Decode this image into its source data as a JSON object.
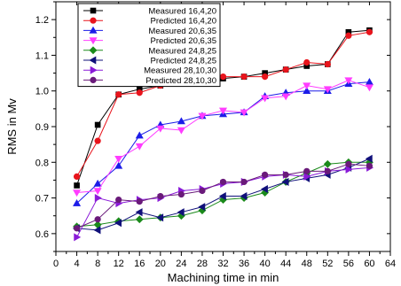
{
  "chart_data": {
    "type": "line",
    "xlabel": "Machining time in min",
    "ylabel": "RMS in Mv",
    "xlim": [
      0,
      64
    ],
    "ylim": [
      0.55,
      1.25
    ],
    "xticks": [
      0,
      4,
      8,
      12,
      16,
      20,
      24,
      28,
      32,
      36,
      40,
      44,
      48,
      52,
      56,
      60,
      64
    ],
    "yticks": [
      0.6,
      0.7,
      0.8,
      0.9,
      1.0,
      1.1,
      1.2
    ],
    "ytick_labels": [
      "0.6",
      "0.7",
      "0.8",
      "0.9",
      "1.0",
      "1.1",
      "1.2"
    ],
    "x": [
      4,
      8,
      12,
      16,
      20,
      24,
      28,
      32,
      36,
      40,
      44,
      48,
      52,
      56,
      60
    ],
    "legend_position": "top-left",
    "grid": false,
    "series": [
      {
        "name": "Measured 16,4,20",
        "color": "#000000",
        "marker": "square",
        "values": [
          0.735,
          0.905,
          0.99,
          1.005,
          1.015,
          1.03,
          1.035,
          1.035,
          1.04,
          1.05,
          1.06,
          1.07,
          1.075,
          1.165,
          1.17
        ]
      },
      {
        "name": "Predicted 16,4,20",
        "color": "#e8141c",
        "marker": "circle",
        "values": [
          0.76,
          0.86,
          0.99,
          0.995,
          1.015,
          1.025,
          1.04,
          1.04,
          1.04,
          1.04,
          1.06,
          1.08,
          1.075,
          1.155,
          1.165
        ]
      },
      {
        "name": "Measured 20,6,35",
        "color": "#1c1ce8",
        "marker": "triangle-up",
        "values": [
          0.685,
          0.74,
          0.79,
          0.875,
          0.905,
          0.915,
          0.93,
          0.935,
          0.94,
          0.985,
          0.995,
          1.0,
          1.0,
          1.02,
          1.025
        ]
      },
      {
        "name": "Predicted 20,6,35",
        "color": "#ff3cff",
        "marker": "triangle-down",
        "values": [
          0.715,
          0.72,
          0.81,
          0.845,
          0.895,
          0.89,
          0.93,
          0.945,
          0.94,
          0.98,
          0.985,
          1.015,
          1.005,
          1.03,
          1.01
        ]
      },
      {
        "name": "Measured 24,8,25",
        "color": "#1a8a1a",
        "marker": "diamond",
        "values": [
          0.62,
          0.625,
          0.635,
          0.64,
          0.645,
          0.65,
          0.665,
          0.695,
          0.7,
          0.715,
          0.745,
          0.77,
          0.795,
          0.8,
          0.8
        ]
      },
      {
        "name": "Predicted 24,8,25",
        "color": "#10107a",
        "marker": "triangle-left",
        "values": [
          0.615,
          0.61,
          0.63,
          0.66,
          0.645,
          0.66,
          0.675,
          0.705,
          0.705,
          0.725,
          0.745,
          0.755,
          0.765,
          0.785,
          0.81
        ]
      },
      {
        "name": "Measured 28,10,30",
        "color": "#8a1ad8",
        "marker": "triangle-right",
        "values": [
          0.59,
          0.7,
          0.685,
          0.695,
          0.7,
          0.72,
          0.725,
          0.74,
          0.745,
          0.76,
          0.765,
          0.76,
          0.775,
          0.78,
          0.785
        ]
      },
      {
        "name": "Predicted 28,10,30",
        "color": "#6a1a7a",
        "marker": "circle",
        "values": [
          0.615,
          0.64,
          0.695,
          0.69,
          0.705,
          0.71,
          0.72,
          0.745,
          0.745,
          0.765,
          0.765,
          0.775,
          0.775,
          0.795,
          0.79
        ]
      }
    ]
  }
}
